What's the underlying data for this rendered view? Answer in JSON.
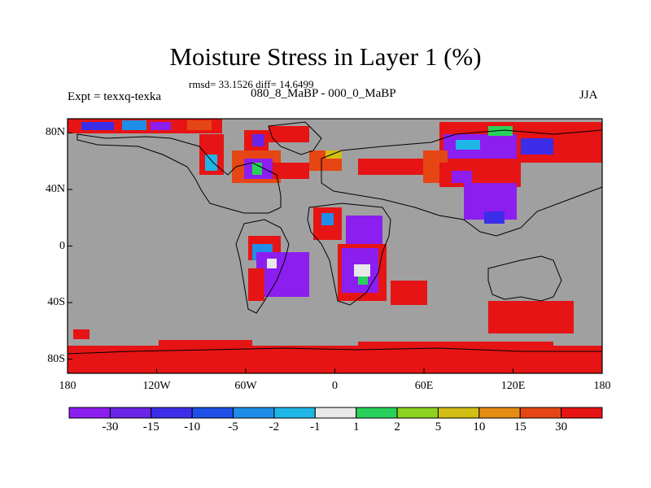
{
  "figure": {
    "title": "Moisture Stress in Layer 1 (%)",
    "stats": "rmsd= 33.1526 diff= 14.6499",
    "subtitle": "080_8_MaBP - 000_0_MaBP",
    "left_label": "Expt = texxq-texka",
    "right_label": "JJA"
  },
  "axes": {
    "lon_ticks": [
      "180",
      "120W",
      "60W",
      "0",
      "60E",
      "120E",
      "180"
    ],
    "lat_ticks": [
      "80N",
      "40N",
      "0",
      "40S",
      "80S"
    ],
    "lon_range": [
      -180,
      180
    ],
    "lat_range": [
      -90,
      90
    ]
  },
  "colorbar": {
    "colors": [
      "#8c1ef0",
      "#6a24e6",
      "#3c2ee8",
      "#1e4fe6",
      "#1e8ee8",
      "#1eb6e6",
      "#e8e8e8",
      "#28d25a",
      "#8cd21e",
      "#d2be14",
      "#e68c14",
      "#e64614",
      "#e61414"
    ],
    "labels": [
      "-30",
      "-15",
      "-10",
      "-5",
      "-2",
      "-1",
      "1",
      "2",
      "5",
      "10",
      "15",
      "30"
    ]
  },
  "colors": {
    "ocean": "#a0a0a0",
    "strong_positive": "#e61414"
  }
}
